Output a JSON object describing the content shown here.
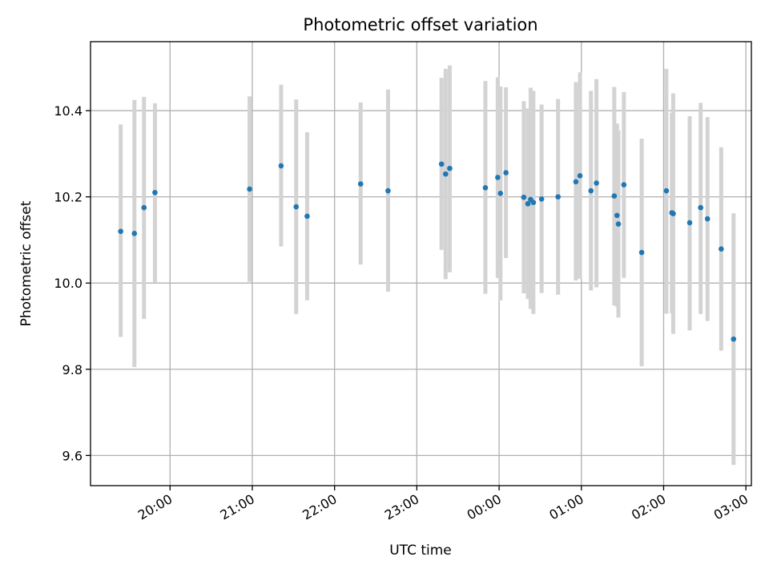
{
  "chart_data": {
    "type": "scatter",
    "title": "Photometric offset variation",
    "xlabel": "UTC time",
    "ylabel": "Photometric offset",
    "x_axis_kind": "time",
    "x_tick_labels": [
      "20:00",
      "21:00",
      "22:00",
      "23:00",
      "00:00",
      "01:00",
      "02:00",
      "03:00"
    ],
    "y_ticks": [
      9.6,
      9.8,
      10.0,
      10.2,
      10.4
    ],
    "y_tick_labels": [
      "9.6",
      "9.8",
      "10.0",
      "10.2",
      "10.4"
    ],
    "ylim": [
      9.53,
      10.56
    ],
    "xlim": [
      "19:02",
      "03:04"
    ],
    "grid": true,
    "marker_color": "#1f77b4",
    "errorbar_color": "#d3d3d3",
    "series": [
      {
        "points": [
          {
            "time": "19:24",
            "y": 10.12,
            "ylo": 9.875,
            "yhi": 10.368
          },
          {
            "time": "19:34",
            "y": 10.115,
            "ylo": 9.805,
            "yhi": 10.425
          },
          {
            "time": "19:41",
            "y": 10.175,
            "ylo": 9.917,
            "yhi": 10.432
          },
          {
            "time": "19:49",
            "y": 10.21,
            "ylo": 10.002,
            "yhi": 10.417
          },
          {
            "time": "20:58",
            "y": 10.218,
            "ylo": 10.003,
            "yhi": 10.433
          },
          {
            "time": "21:21",
            "y": 10.272,
            "ylo": 10.085,
            "yhi": 10.46
          },
          {
            "time": "21:32",
            "y": 10.177,
            "ylo": 9.928,
            "yhi": 10.426
          },
          {
            "time": "21:40",
            "y": 10.155,
            "ylo": 9.96,
            "yhi": 10.35
          },
          {
            "time": "22:19",
            "y": 10.23,
            "ylo": 10.043,
            "yhi": 10.419
          },
          {
            "time": "22:39",
            "y": 10.214,
            "ylo": 9.98,
            "yhi": 10.449
          },
          {
            "time": "23:18",
            "y": 10.276,
            "ylo": 10.077,
            "yhi": 10.476
          },
          {
            "time": "23:21",
            "y": 10.253,
            "ylo": 10.009,
            "yhi": 10.497
          },
          {
            "time": "23:24",
            "y": 10.266,
            "ylo": 10.025,
            "yhi": 10.505
          },
          {
            "time": "23:50",
            "y": 10.221,
            "ylo": 9.975,
            "yhi": 10.469
          },
          {
            "time": "23:59",
            "y": 10.245,
            "ylo": 10.012,
            "yhi": 10.477
          },
          {
            "time": "00:01",
            "y": 10.208,
            "ylo": 9.96,
            "yhi": 10.456
          },
          {
            "time": "00:05",
            "y": 10.256,
            "ylo": 10.058,
            "yhi": 10.454
          },
          {
            "time": "00:18",
            "y": 10.199,
            "ylo": 9.976,
            "yhi": 10.422
          },
          {
            "time": "00:21",
            "y": 10.184,
            "ylo": 9.963,
            "yhi": 10.405
          },
          {
            "time": "00:23",
            "y": 10.194,
            "ylo": 9.94,
            "yhi": 10.453
          },
          {
            "time": "00:25",
            "y": 10.187,
            "ylo": 9.928,
            "yhi": 10.446
          },
          {
            "time": "00:31",
            "y": 10.195,
            "ylo": 9.977,
            "yhi": 10.414
          },
          {
            "time": "00:43",
            "y": 10.2,
            "ylo": 9.973,
            "yhi": 10.427
          },
          {
            "time": "00:56",
            "y": 10.235,
            "ylo": 10.006,
            "yhi": 10.466
          },
          {
            "time": "00:59",
            "y": 10.249,
            "ylo": 10.01,
            "yhi": 10.489
          },
          {
            "time": "01:07",
            "y": 10.214,
            "ylo": 9.983,
            "yhi": 10.446
          },
          {
            "time": "01:11",
            "y": 10.232,
            "ylo": 9.99,
            "yhi": 10.473
          },
          {
            "time": "01:24",
            "y": 10.202,
            "ylo": 9.948,
            "yhi": 10.455
          },
          {
            "time": "01:26",
            "y": 10.157,
            "ylo": 9.945,
            "yhi": 10.37
          },
          {
            "time": "01:27",
            "y": 10.137,
            "ylo": 9.92,
            "yhi": 10.354
          },
          {
            "time": "01:31",
            "y": 10.228,
            "ylo": 10.012,
            "yhi": 10.443
          },
          {
            "time": "01:44",
            "y": 10.071,
            "ylo": 9.807,
            "yhi": 10.335
          },
          {
            "time": "02:02",
            "y": 10.214,
            "ylo": 9.929,
            "yhi": 10.497
          },
          {
            "time": "02:06",
            "y": 10.163,
            "ylo": 9.93,
            "yhi": 10.395
          },
          {
            "time": "02:07",
            "y": 10.161,
            "ylo": 9.882,
            "yhi": 10.44
          },
          {
            "time": "02:19",
            "y": 10.14,
            "ylo": 9.89,
            "yhi": 10.387
          },
          {
            "time": "02:27",
            "y": 10.175,
            "ylo": 9.928,
            "yhi": 10.418
          },
          {
            "time": "02:32",
            "y": 10.149,
            "ylo": 9.912,
            "yhi": 10.385
          },
          {
            "time": "02:42",
            "y": 10.079,
            "ylo": 9.843,
            "yhi": 10.315
          },
          {
            "time": "02:51",
            "y": 9.87,
            "ylo": 9.578,
            "yhi": 10.162
          }
        ]
      }
    ]
  }
}
